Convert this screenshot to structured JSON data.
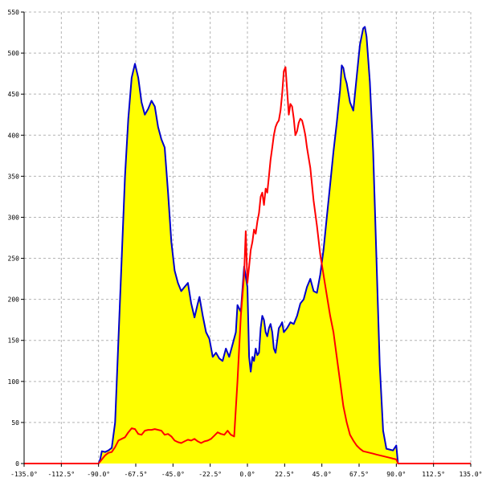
{
  "chart_data": {
    "type": "area",
    "title": "",
    "xlabel": "",
    "ylabel": "",
    "xlim": [
      -135,
      135
    ],
    "ylim": [
      0,
      550
    ],
    "grid": true,
    "x_ticks": [
      -135,
      -112.5,
      -90,
      -67.5,
      -45,
      -22.5,
      0,
      22.5,
      45,
      67.5,
      90,
      112.5,
      135
    ],
    "x_tick_labels": [
      "-135.0°",
      "-112.5°",
      "-90.0°",
      "-67.5°",
      "-45.0°",
      "-22.5°",
      "0.0°",
      "22.5°",
      "45.0°",
      "67.5°",
      "90.0°",
      "112.5°",
      "135.0°"
    ],
    "y_ticks": [
      0,
      50,
      100,
      150,
      200,
      250,
      300,
      350,
      400,
      450,
      500,
      550
    ],
    "y_tick_labels": [
      "0",
      "50",
      "100",
      "150",
      "200",
      "250",
      "300",
      "350",
      "400",
      "450",
      "500",
      "550"
    ],
    "series": [
      {
        "color": "#0000cc",
        "fill": "#ffff00",
        "points": [
          [
            -135,
            0
          ],
          [
            -90,
            0
          ],
          [
            -89,
            5
          ],
          [
            -88,
            15
          ],
          [
            -86,
            14
          ],
          [
            -84,
            16
          ],
          [
            -82,
            19
          ],
          [
            -80,
            50
          ],
          [
            -78,
            150
          ],
          [
            -76,
            250
          ],
          [
            -74,
            350
          ],
          [
            -72,
            420
          ],
          [
            -70,
            470
          ],
          [
            -68,
            487
          ],
          [
            -66,
            470
          ],
          [
            -64,
            440
          ],
          [
            -62,
            425
          ],
          [
            -60,
            432
          ],
          [
            -58,
            442
          ],
          [
            -56,
            435
          ],
          [
            -54,
            410
          ],
          [
            -52,
            395
          ],
          [
            -50,
            385
          ],
          [
            -48,
            330
          ],
          [
            -46,
            270
          ],
          [
            -44,
            235
          ],
          [
            -42,
            220
          ],
          [
            -40,
            210
          ],
          [
            -38,
            215
          ],
          [
            -36,
            220
          ],
          [
            -34,
            195
          ],
          [
            -32,
            178
          ],
          [
            -30,
            195
          ],
          [
            -29,
            203
          ],
          [
            -27,
            180
          ],
          [
            -25,
            160
          ],
          [
            -23,
            152
          ],
          [
            -21,
            130
          ],
          [
            -19,
            135
          ],
          [
            -17,
            128
          ],
          [
            -15,
            125
          ],
          [
            -13,
            140
          ],
          [
            -11,
            130
          ],
          [
            -9,
            145
          ],
          [
            -7,
            160
          ],
          [
            -6,
            193
          ],
          [
            -4,
            185
          ],
          [
            -2,
            240
          ],
          [
            0,
            215
          ],
          [
            1,
            130
          ],
          [
            2,
            112
          ],
          [
            3,
            130
          ],
          [
            4,
            125
          ],
          [
            5,
            140
          ],
          [
            6,
            132
          ],
          [
            7,
            135
          ],
          [
            8,
            165
          ],
          [
            9,
            180
          ],
          [
            10,
            175
          ],
          [
            11,
            160
          ],
          [
            12,
            155
          ],
          [
            13,
            165
          ],
          [
            14,
            170
          ],
          [
            15,
            160
          ],
          [
            16,
            140
          ],
          [
            17,
            135
          ],
          [
            18,
            150
          ],
          [
            19,
            165
          ],
          [
            20,
            168
          ],
          [
            21,
            172
          ],
          [
            22,
            160
          ],
          [
            24,
            165
          ],
          [
            26,
            172
          ],
          [
            28,
            170
          ],
          [
            30,
            180
          ],
          [
            32,
            195
          ],
          [
            34,
            200
          ],
          [
            36,
            215
          ],
          [
            38,
            225
          ],
          [
            40,
            210
          ],
          [
            42,
            208
          ],
          [
            44,
            230
          ],
          [
            46,
            260
          ],
          [
            48,
            300
          ],
          [
            50,
            340
          ],
          [
            52,
            380
          ],
          [
            54,
            415
          ],
          [
            56,
            455
          ],
          [
            57,
            485
          ],
          [
            58,
            482
          ],
          [
            59,
            470
          ],
          [
            60,
            463
          ],
          [
            62,
            440
          ],
          [
            64,
            430
          ],
          [
            66,
            470
          ],
          [
            68,
            510
          ],
          [
            70,
            530
          ],
          [
            71,
            532
          ],
          [
            72,
            520
          ],
          [
            74,
            465
          ],
          [
            76,
            380
          ],
          [
            78,
            250
          ],
          [
            80,
            120
          ],
          [
            82,
            40
          ],
          [
            84,
            18
          ],
          [
            86,
            17
          ],
          [
            88,
            16
          ],
          [
            90,
            22
          ],
          [
            91,
            0
          ],
          [
            135,
            0
          ]
        ]
      },
      {
        "color": "#ff0000",
        "fill": "none",
        "points": [
          [
            -135,
            0
          ],
          [
            -90,
            0
          ],
          [
            -88,
            5
          ],
          [
            -86,
            10
          ],
          [
            -84,
            13
          ],
          [
            -82,
            14
          ],
          [
            -80,
            20
          ],
          [
            -78,
            28
          ],
          [
            -76,
            30
          ],
          [
            -74,
            32
          ],
          [
            -72,
            38
          ],
          [
            -70,
            43
          ],
          [
            -68,
            42
          ],
          [
            -66,
            36
          ],
          [
            -64,
            35
          ],
          [
            -62,
            40
          ],
          [
            -60,
            41
          ],
          [
            -58,
            41
          ],
          [
            -56,
            42
          ],
          [
            -54,
            41
          ],
          [
            -52,
            40
          ],
          [
            -50,
            35
          ],
          [
            -48,
            36
          ],
          [
            -46,
            33
          ],
          [
            -44,
            28
          ],
          [
            -42,
            26
          ],
          [
            -40,
            25
          ],
          [
            -38,
            27
          ],
          [
            -36,
            29
          ],
          [
            -34,
            28
          ],
          [
            -32,
            30
          ],
          [
            -30,
            27
          ],
          [
            -28,
            25
          ],
          [
            -26,
            27
          ],
          [
            -24,
            28
          ],
          [
            -22,
            30
          ],
          [
            -20,
            34
          ],
          [
            -18,
            38
          ],
          [
            -16,
            36
          ],
          [
            -14,
            35
          ],
          [
            -12,
            40
          ],
          [
            -10,
            35
          ],
          [
            -8,
            33
          ],
          [
            -6,
            100
          ],
          [
            -4,
            180
          ],
          [
            -2,
            230
          ],
          [
            -1,
            283
          ],
          [
            0,
            220
          ],
          [
            1,
            240
          ],
          [
            2,
            260
          ],
          [
            3,
            270
          ],
          [
            4,
            285
          ],
          [
            5,
            280
          ],
          [
            6,
            295
          ],
          [
            7,
            305
          ],
          [
            8,
            325
          ],
          [
            9,
            330
          ],
          [
            10,
            315
          ],
          [
            11,
            335
          ],
          [
            12,
            330
          ],
          [
            13,
            350
          ],
          [
            14,
            370
          ],
          [
            15,
            385
          ],
          [
            16,
            400
          ],
          [
            17,
            410
          ],
          [
            18,
            415
          ],
          [
            19,
            418
          ],
          [
            20,
            430
          ],
          [
            21,
            450
          ],
          [
            22,
            478
          ],
          [
            23,
            483
          ],
          [
            24,
            455
          ],
          [
            25,
            425
          ],
          [
            26,
            438
          ],
          [
            27,
            435
          ],
          [
            28,
            420
          ],
          [
            29,
            400
          ],
          [
            30,
            405
          ],
          [
            31,
            415
          ],
          [
            32,
            420
          ],
          [
            33,
            418
          ],
          [
            34,
            410
          ],
          [
            35,
            400
          ],
          [
            36,
            385
          ],
          [
            38,
            360
          ],
          [
            40,
            320
          ],
          [
            42,
            290
          ],
          [
            44,
            255
          ],
          [
            46,
            230
          ],
          [
            48,
            205
          ],
          [
            50,
            180
          ],
          [
            52,
            160
          ],
          [
            54,
            130
          ],
          [
            56,
            100
          ],
          [
            58,
            70
          ],
          [
            60,
            50
          ],
          [
            62,
            35
          ],
          [
            64,
            28
          ],
          [
            66,
            22
          ],
          [
            68,
            18
          ],
          [
            70,
            15
          ],
          [
            72,
            14
          ],
          [
            74,
            13
          ],
          [
            76,
            12
          ],
          [
            78,
            11
          ],
          [
            80,
            10
          ],
          [
            82,
            9
          ],
          [
            84,
            8
          ],
          [
            86,
            7
          ],
          [
            88,
            6
          ],
          [
            90,
            5
          ],
          [
            91,
            0
          ],
          [
            135,
            0
          ]
        ]
      }
    ]
  }
}
